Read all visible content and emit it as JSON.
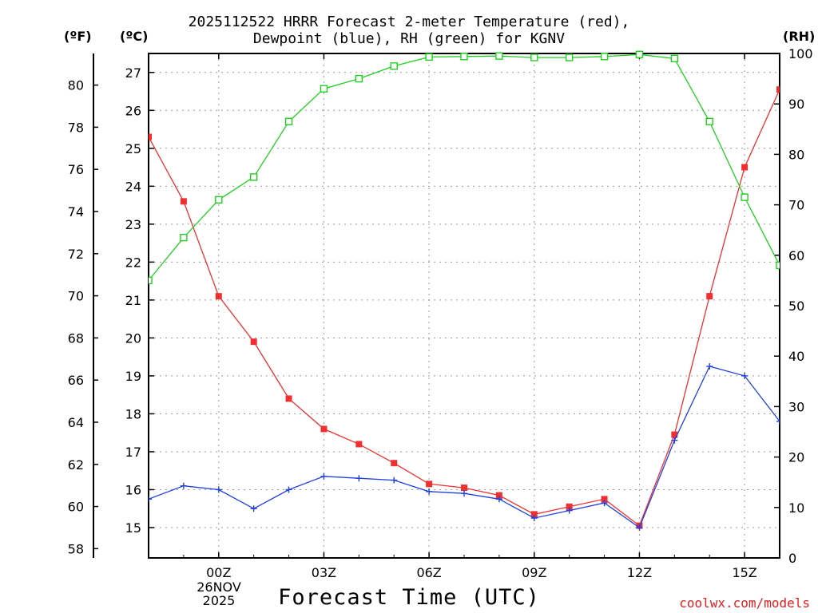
{
  "title_line1": "2025112522 HRRR Forecast 2-meter Temperature (red),",
  "title_line2": "Dewpoint (blue), RH (green) for KGNV",
  "units": {
    "fahrenheit": "(ºF)",
    "celsius": "(ºC)",
    "rh": "(RH)"
  },
  "xlabel": "Forecast Time (UTC)",
  "credit": "coolwx.com/models",
  "date_label": {
    "line1": "26NOV",
    "line2": "2025"
  },
  "colors": {
    "temperature": "#f03030",
    "dewpoint": "#2040e0",
    "rh": "#20d020",
    "grid": "#9a9a9a",
    "credit": "#e02020"
  },
  "chart_data": {
    "type": "line",
    "title": "2025112522 HRRR Forecast 2-meter Temperature (red), Dewpoint (blue), RH (green) for KGNV",
    "xlabel": "Forecast Time (UTC)",
    "x_hours": [
      -2,
      -1,
      0,
      1,
      2,
      3,
      4,
      5,
      6,
      7,
      8,
      9,
      10,
      11,
      12,
      13,
      14,
      15,
      16
    ],
    "x_range": [
      -2,
      16
    ],
    "x_ticks": [
      {
        "hour": 0,
        "label": "00Z"
      },
      {
        "hour": 3,
        "label": "03Z"
      },
      {
        "hour": 6,
        "label": "06Z"
      },
      {
        "hour": 9,
        "label": "09Z"
      },
      {
        "hour": 12,
        "label": "12Z"
      },
      {
        "hour": 15,
        "label": "15Z"
      }
    ],
    "y_celsius_range": [
      14.2,
      27.5
    ],
    "y_celsius_ticks": [
      15,
      16,
      17,
      18,
      19,
      20,
      21,
      22,
      23,
      24,
      25,
      26,
      27
    ],
    "y_fahrenheit_ticks": [
      58,
      60,
      62,
      64,
      66,
      68,
      70,
      72,
      74,
      76,
      78,
      80
    ],
    "y_rh_range": [
      0,
      100
    ],
    "y_rh_ticks": [
      0,
      10,
      20,
      30,
      40,
      50,
      60,
      70,
      80,
      90,
      100
    ],
    "grid": true,
    "series": [
      {
        "name": "Temperature",
        "axis": "celsius",
        "marker": "filled-square",
        "values": [
          25.3,
          23.6,
          21.1,
          19.9,
          18.4,
          17.6,
          17.2,
          16.7,
          16.15,
          16.05,
          15.85,
          15.35,
          15.55,
          15.75,
          15.05,
          17.45,
          21.1,
          24.5,
          26.55
        ]
      },
      {
        "name": "Dewpoint",
        "axis": "celsius",
        "marker": "plus",
        "values": [
          15.75,
          16.1,
          16.0,
          15.5,
          16.0,
          16.35,
          16.3,
          16.25,
          15.95,
          15.9,
          15.75,
          15.25,
          15.45,
          15.65,
          15.0,
          17.3,
          19.25,
          19.0,
          17.8
        ]
      },
      {
        "name": "RH",
        "axis": "rh",
        "marker": "open-square",
        "values": [
          55,
          63.5,
          71,
          75.5,
          86.5,
          93,
          95,
          97.5,
          99.3,
          99.4,
          99.5,
          99.2,
          99.2,
          99.4,
          99.8,
          99,
          86.5,
          71.5,
          58
        ]
      }
    ]
  }
}
